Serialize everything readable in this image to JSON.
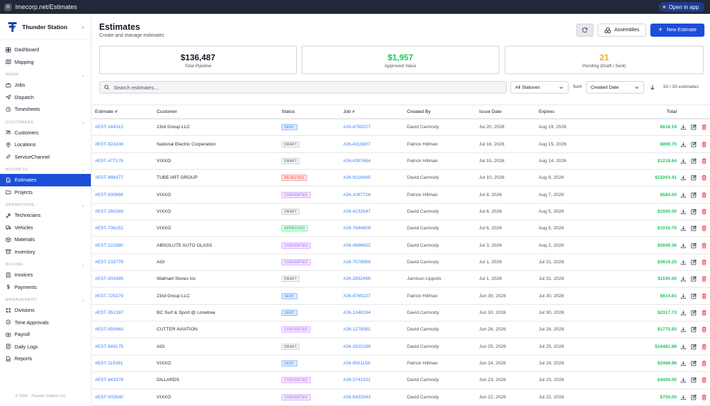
{
  "browser": {
    "url": "lmecorp.net/Estimates",
    "open_app": "Open in app"
  },
  "sidebar": {
    "brand": "Thunder Station",
    "sections": [
      {
        "header": "",
        "items": [
          {
            "label": "Dashboard",
            "icon": "dashboard-icon"
          },
          {
            "label": "Mapping",
            "icon": "map-icon"
          }
        ]
      },
      {
        "header": "WORK",
        "items": [
          {
            "label": "Jobs",
            "icon": "briefcase-icon"
          },
          {
            "label": "Dispatch",
            "icon": "dispatch-icon"
          },
          {
            "label": "Timesheets",
            "icon": "clock-icon"
          }
        ]
      },
      {
        "header": "CUSTOMERS",
        "items": [
          {
            "label": "Customers",
            "icon": "users-icon"
          },
          {
            "label": "Locations",
            "icon": "pin-icon"
          },
          {
            "label": "ServiceChannel",
            "icon": "link-icon"
          }
        ]
      },
      {
        "header": "BUSINESS",
        "items": [
          {
            "label": "Estimates",
            "icon": "document-icon",
            "active": true
          },
          {
            "label": "Projects",
            "icon": "folder-icon"
          }
        ]
      },
      {
        "header": "OPERATIONS",
        "items": [
          {
            "label": "Technicians",
            "icon": "wrench-icon"
          },
          {
            "label": "Vehicles",
            "icon": "truck-icon"
          },
          {
            "label": "Materials",
            "icon": "box-icon"
          },
          {
            "label": "Inventory",
            "icon": "archive-icon"
          }
        ]
      },
      {
        "header": "BILLING",
        "items": [
          {
            "label": "Invoices",
            "icon": "invoice-icon"
          },
          {
            "label": "Payments",
            "icon": "dollar-icon"
          }
        ]
      },
      {
        "header": "MANAGEMENT",
        "items": [
          {
            "label": "Divisions",
            "icon": "grid-icon"
          },
          {
            "label": "Time Approvals",
            "icon": "check-clock-icon"
          },
          {
            "label": "Payroll",
            "icon": "payroll-icon"
          },
          {
            "label": "Daily Logs",
            "icon": "notebook-icon"
          },
          {
            "label": "Reports",
            "icon": "report-icon"
          }
        ]
      }
    ],
    "footer": "© 2026 · Thunder Station LLC"
  },
  "header": {
    "title": "Estimates",
    "subtitle": "Create and manage estimates",
    "assemblies_label": "Assemblies",
    "new_label": "New Estimate"
  },
  "stats": [
    {
      "value": "$136,487",
      "label": "Total Pipeline",
      "color": "#111827"
    },
    {
      "value": "$1,957",
      "label": "Approved Value",
      "color": "#22c55e"
    },
    {
      "value": "21",
      "label": "Pending (Draft / Sent)",
      "color": "#eab308"
    }
  ],
  "filters": {
    "search_placeholder": "Search estimates...",
    "status_value": "All Statuses",
    "sort_label": "Sort:",
    "sort_value": "Created Date",
    "count": "33 / 33 estimates"
  },
  "table": {
    "columns": [
      "Estimate #",
      "Customer",
      "Status",
      "Job #",
      "Created By",
      "Issue Date",
      "Expires",
      "Total"
    ],
    "rows": [
      {
        "est": "#EST-144312",
        "customer": "23rd Group LLC",
        "status": "SENT",
        "job": "#26-4780227",
        "by": "David Carmody",
        "issue": "Jul 20, 2026",
        "expires": "Aug 19, 2026",
        "total": "$618.19"
      },
      {
        "est": "#EST-924208",
        "customer": "National Electric Corperation",
        "status": "DRAFT",
        "job": "#26-4316807",
        "by": "Patrick Hillman",
        "issue": "Jul 16, 2026",
        "expires": "Aug 15, 2026",
        "total": "$999.70"
      },
      {
        "est": "#EST-477176",
        "customer": "VIXXO",
        "status": "DRAFT",
        "job": "#26-4397484",
        "by": "Patrick Hillman",
        "issue": "Jul 15, 2026",
        "expires": "Aug 14, 2026",
        "total": "$1218.64"
      },
      {
        "est": "#EST-988477",
        "customer": "TUBE ART GROUP",
        "status": "REJECTED",
        "job": "#26-9216945",
        "by": "David Carmody",
        "issue": "Jul 10, 2026",
        "expires": "Aug 9, 2026",
        "total": "$15003.41"
      },
      {
        "est": "#EST-930866",
        "customer": "VIXXO",
        "status": "CONVERTED",
        "job": "#26-1087726",
        "by": "Patrick Hillman",
        "issue": "Jul 8, 2026",
        "expires": "Aug 7, 2026",
        "total": "$584.00"
      },
      {
        "est": "#EST-260269",
        "customer": "VIXXO",
        "status": "DRAFT",
        "job": "#26-4232547",
        "by": "David Carmody",
        "issue": "Jul 6, 2026",
        "expires": "Aug 5, 2026",
        "total": "$1500.00"
      },
      {
        "est": "#EST-736252",
        "customer": "VIXXO",
        "status": "APPROVED",
        "job": "#26-7644609",
        "by": "David Carmody",
        "issue": "Jul 6, 2026",
        "expires": "Aug 5, 2026",
        "total": "$1016.75"
      },
      {
        "est": "#EST-221980",
        "customer": "ABSOLUTE AUTO GLASS",
        "status": "CONVERTED",
        "job": "#26-4696652",
        "by": "David Carmody",
        "issue": "Jul 3, 2026",
        "expires": "Aug 2, 2026",
        "total": "$5649.36"
      },
      {
        "est": "#EST-133779",
        "customer": "AGI",
        "status": "CONVERTED",
        "job": "#26-7578969",
        "by": "David Carmody",
        "issue": "Jul 1, 2026",
        "expires": "Jul 31, 2026",
        "total": "$3816.25"
      },
      {
        "est": "#EST-003485",
        "customer": "Walmart Stores Inc",
        "status": "DRAFT",
        "job": "#26-2832496",
        "by": "Jamison Lippolis",
        "issue": "Jul 1, 2026",
        "expires": "Jul 31, 2026",
        "total": "$1190.00"
      },
      {
        "est": "#EST-725379",
        "customer": "23rd Group LLC",
        "status": "SENT",
        "job": "#26-4780227",
        "by": "Patrick Hillman",
        "issue": "Jun 30, 2026",
        "expires": "Jul 30, 2026",
        "total": "$614.61"
      },
      {
        "est": "#EST-351397",
        "customer": "BC Surf & Sport @ Lonetree",
        "status": "SENT",
        "job": "#26-1348184",
        "by": "David Carmody",
        "issue": "Jun 30, 2026",
        "expires": "Jul 30, 2026",
        "total": "$2317.73"
      },
      {
        "est": "#EST-093463",
        "customer": "CUTTER AVIATION",
        "status": "CONVERTED",
        "job": "#26-1279581",
        "by": "David Carmody",
        "issue": "Jun 26, 2026",
        "expires": "Jul 26, 2026",
        "total": "$1775.83"
      },
      {
        "est": "#EST-549175",
        "customer": "AGI",
        "status": "DRAFT",
        "job": "#26-2920189",
        "by": "David Carmody",
        "issue": "Jun 25, 2026",
        "expires": "Jul 25, 2026",
        "total": "$16481.88"
      },
      {
        "est": "#EST-115381",
        "customer": "VIXXO",
        "status": "SENT",
        "job": "#26-9551156",
        "by": "Patrick Hillman",
        "issue": "Jun 24, 2026",
        "expires": "Jul 24, 2026",
        "total": "$2468.96"
      },
      {
        "est": "#EST-843378",
        "customer": "DILLARDS",
        "status": "CONVERTED",
        "job": "#26-3741531",
        "by": "David Carmody",
        "issue": "Jun 23, 2026",
        "expires": "Jul 23, 2026",
        "total": "$4400.00"
      },
      {
        "est": "#EST-003540",
        "customer": "VIXXO",
        "status": "CONVERTED",
        "job": "#26-5433343",
        "by": "David Carmody",
        "issue": "Jun 22, 2026",
        "expires": "Jul 22, 2026",
        "total": "$750.00"
      }
    ]
  },
  "colors": {
    "accent": "#1d4ed8",
    "link": "#3b82f6",
    "money": "#22c55e",
    "delete": "#ef4444"
  }
}
